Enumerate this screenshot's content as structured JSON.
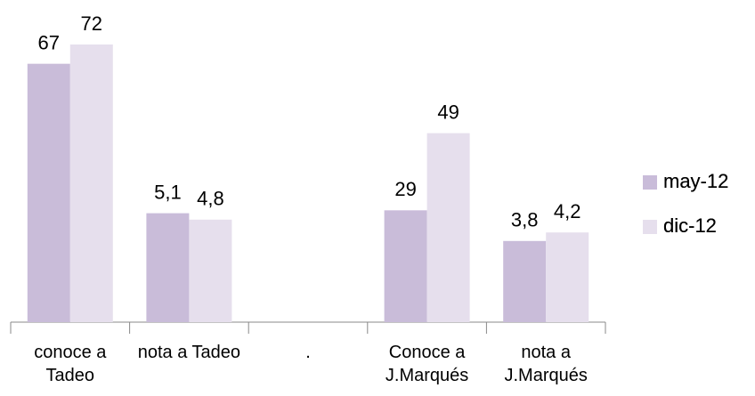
{
  "chart_data": {
    "type": "bar",
    "categories": [
      "conoce a Tadeo",
      "nota a Tadeo",
      ".",
      "Conoce a J.Marqués",
      "nota a J.Marqués"
    ],
    "ylim": [
      0,
      72
    ],
    "y2lim": [
      0,
      13
    ],
    "series": [
      {
        "name": "may-12",
        "color": "#c9bcd9",
        "values": [
          67,
          null,
          null,
          29,
          null
        ]
      },
      {
        "name": "dic-12",
        "color": "#e6dfed",
        "values": [
          72,
          null,
          null,
          49,
          null
        ]
      },
      {
        "name": "may-12",
        "color": "#c9bcd9",
        "axis": "y2",
        "values": [
          null,
          5.1,
          null,
          null,
          3.8
        ],
        "value_labels": [
          null,
          "5,1",
          null,
          null,
          "3,8"
        ]
      },
      {
        "name": "dic-12",
        "color": "#e6dfed",
        "axis": "y2",
        "values": [
          null,
          4.8,
          null,
          null,
          4.2
        ],
        "value_labels": [
          null,
          "4,8",
          null,
          null,
          "4,2"
        ]
      }
    ],
    "legend": "right"
  }
}
